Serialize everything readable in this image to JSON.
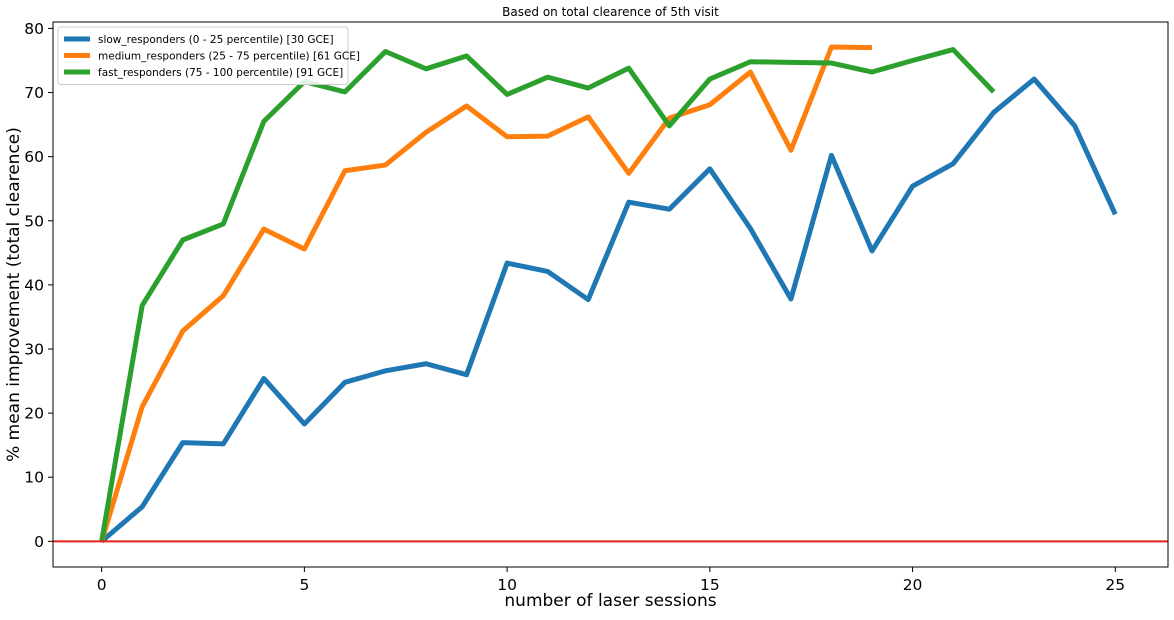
{
  "chart_data": {
    "type": "line",
    "title": "Based on total clearence of 5th visit",
    "xlabel": "number of laser sessions",
    "ylabel": "% mean improvement (total clearence)",
    "xlim": [
      -1.2,
      26.3
    ],
    "ylim": [
      -4,
      81
    ],
    "x_ticks": [
      0,
      5,
      10,
      15,
      20,
      25
    ],
    "y_ticks": [
      0,
      10,
      20,
      30,
      40,
      50,
      60,
      70,
      80
    ],
    "grid": false,
    "legend_position": "top-left",
    "reference_line": {
      "y": 0,
      "color": "#e8221b"
    },
    "series": [
      {
        "name": "slow_responders (0 - 25 percentile)  [30 GCE]",
        "color": "#1f77b4",
        "x": [
          0,
          1,
          2,
          3,
          4,
          5,
          6,
          7,
          8,
          9,
          10,
          11,
          12,
          13,
          14,
          15,
          16,
          17,
          18,
          19,
          20,
          21,
          22,
          23,
          24,
          25
        ],
        "values": [
          0,
          5.4,
          15.4,
          15.2,
          25.4,
          18.3,
          24.8,
          26.6,
          27.7,
          26.0,
          43.4,
          42.1,
          37.7,
          52.9,
          51.8,
          58.1,
          48.8,
          37.8,
          60.2,
          45.3,
          55.4,
          58.9,
          66.9,
          72.1,
          64.8,
          51.0
        ]
      },
      {
        "name": "medium_responders (25 - 75 percentile)  [61 GCE]",
        "color": "#ff7f0e",
        "x": [
          0,
          1,
          2,
          3,
          4,
          5,
          6,
          7,
          8,
          9,
          10,
          11,
          12,
          13,
          14,
          15,
          16,
          17,
          18,
          19
        ],
        "values": [
          0,
          21.0,
          32.8,
          38.3,
          48.7,
          45.6,
          57.8,
          58.7,
          63.8,
          67.9,
          63.1,
          63.2,
          66.2,
          57.4,
          66.0,
          68.1,
          73.2,
          61.0,
          77.1,
          77.0
        ]
      },
      {
        "name": "fast_responders (75 - 100 percentile)  [91 GCE]",
        "color": "#2ca02c",
        "x": [
          0,
          1,
          2,
          3,
          4,
          5,
          6,
          7,
          8,
          9,
          10,
          11,
          12,
          13,
          14,
          15,
          16,
          17,
          18,
          19,
          20,
          21,
          22
        ],
        "values": [
          0,
          36.8,
          47.0,
          49.5,
          65.5,
          71.7,
          70.1,
          76.4,
          73.7,
          75.7,
          69.7,
          72.4,
          70.7,
          73.8,
          64.8,
          72.1,
          74.8,
          74.7,
          74.6,
          73.2,
          75.0,
          76.7,
          70.1
        ]
      }
    ]
  }
}
